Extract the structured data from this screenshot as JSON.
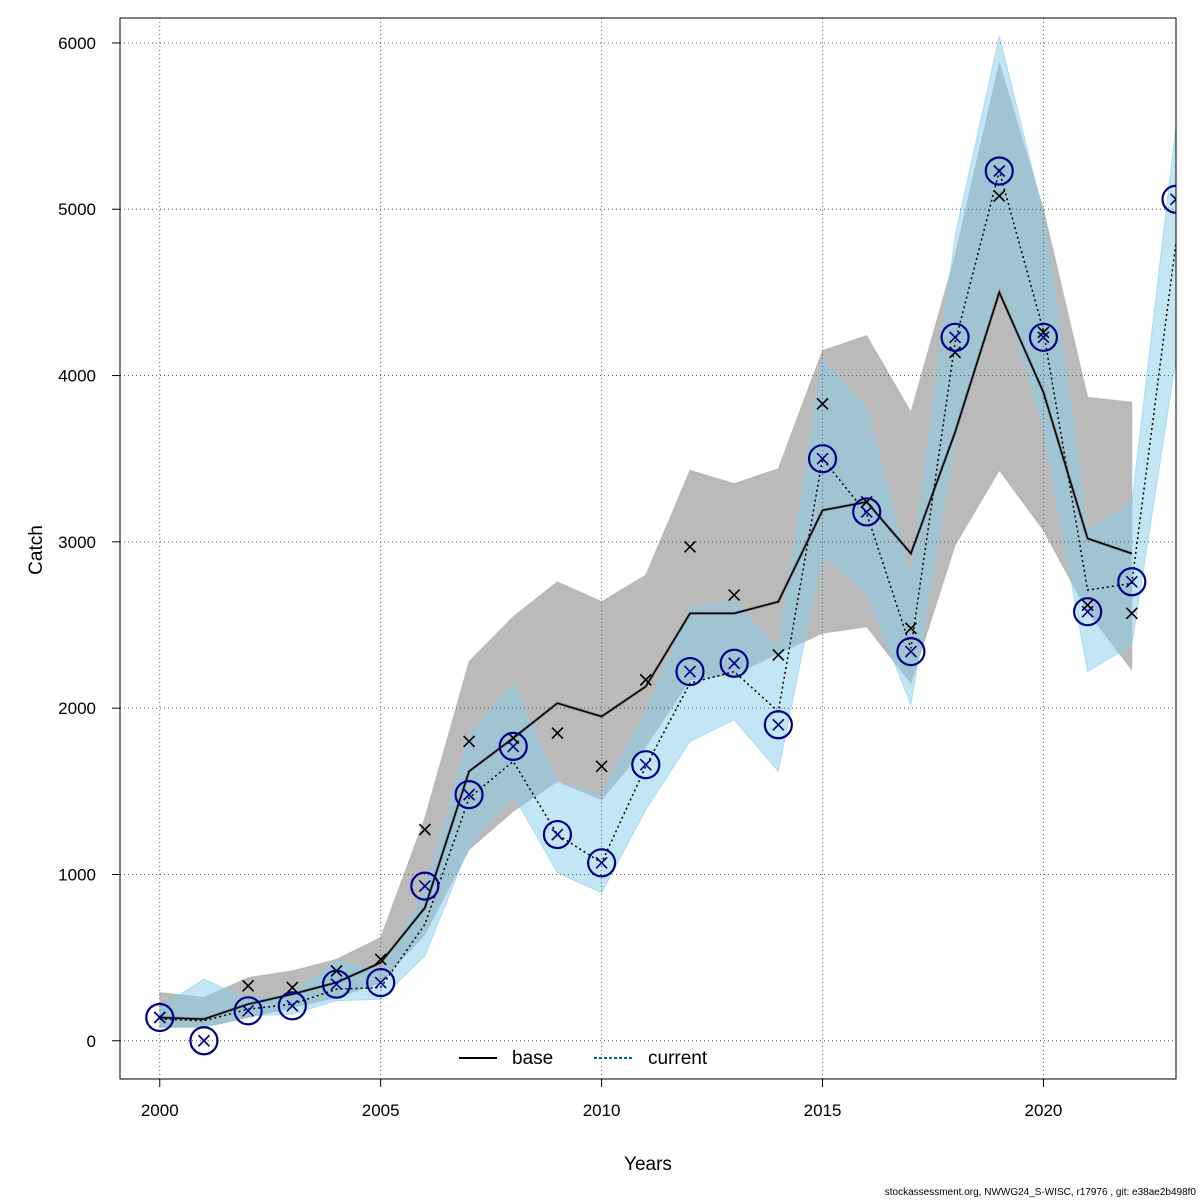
{
  "chart_data": {
    "type": "line",
    "xlabel": "Years",
    "ylabel": "Catch",
    "xlim": [
      1999.1,
      2023
    ],
    "ylim": [
      -230,
      6150
    ],
    "xticks": [
      2000,
      2005,
      2010,
      2015,
      2020
    ],
    "yticks": [
      0,
      1000,
      2000,
      3000,
      4000,
      5000,
      6000
    ],
    "grid": true,
    "legend_position": "bottom-center",
    "colors": {
      "base_line": "#000000",
      "base_band": "#a9a9a9",
      "current_line": "#00008b",
      "current_band": "#87ceeb",
      "observed_circle": "#00008b",
      "base_x": "#000000",
      "current_x": "#00008b"
    },
    "legend": [
      {
        "label": "base",
        "style": "solid",
        "color": "#000000"
      },
      {
        "label": "current",
        "style": "dotted",
        "color": "#00688b"
      }
    ],
    "x": [
      2000,
      2001,
      2002,
      2003,
      2004,
      2005,
      2006,
      2007,
      2008,
      2009,
      2010,
      2011,
      2012,
      2013,
      2014,
      2015,
      2016,
      2017,
      2018,
      2019,
      2020,
      2021,
      2022,
      2023
    ],
    "series": [
      {
        "name": "base",
        "values": [
          140,
          130,
          220,
          280,
          350,
          470,
          800,
          1620,
          1820,
          2030,
          1950,
          2130,
          2570,
          2570,
          2640,
          3190,
          3240,
          2930,
          3660,
          4500,
          3900,
          3020,
          2930,
          null
        ],
        "lower": [
          80,
          80,
          140,
          200,
          260,
          350,
          640,
          1150,
          1380,
          1560,
          1450,
          1770,
          2170,
          2200,
          2330,
          2450,
          2490,
          2150,
          2980,
          3430,
          3070,
          2580,
          2230,
          null
        ],
        "upper": [
          290,
          260,
          380,
          420,
          490,
          620,
          1340,
          2280,
          2550,
          2760,
          2640,
          2800,
          3430,
          3350,
          3440,
          4150,
          4240,
          3780,
          4720,
          5880,
          5000,
          3870,
          3840,
          null
        ],
        "observed": [
          140,
          null,
          330,
          320,
          420,
          490,
          1270,
          1800,
          1820,
          1850,
          1650,
          2170,
          2970,
          2680,
          2320,
          3830,
          3240,
          2480,
          4140,
          5080,
          4260,
          2620,
          2570,
          null
        ]
      },
      {
        "name": "current",
        "values": [
          130,
          120,
          190,
          220,
          310,
          320,
          700,
          1460,
          1680,
          1240,
          1070,
          1650,
          2150,
          2220,
          1980,
          3500,
          3170,
          2360,
          4200,
          5230,
          4270,
          2710,
          2750,
          4800
        ],
        "lower": [
          90,
          80,
          150,
          160,
          240,
          250,
          510,
          1170,
          1480,
          1010,
          890,
          1390,
          1800,
          1930,
          1620,
          2930,
          2690,
          2020,
          3630,
          4570,
          3690,
          2220,
          2380,
          4100
        ],
        "upper": [
          200,
          370,
          250,
          280,
          480,
          420,
          900,
          1830,
          2150,
          1550,
          1480,
          1980,
          2600,
          2650,
          2350,
          4090,
          3800,
          2790,
          4840,
          6040,
          4970,
          3070,
          3230,
          5500
        ],
        "observed": [
          140,
          0,
          180,
          210,
          340,
          350,
          930,
          1480,
          1770,
          1240,
          1070,
          1660,
          2220,
          2270,
          1900,
          3500,
          3180,
          2340,
          4230,
          5230,
          4230,
          2580,
          2760,
          5060
        ]
      }
    ]
  },
  "footer": "stockassessment.org, NWWG24_S-WISC, r17976 , git: e38ae2b498f0"
}
